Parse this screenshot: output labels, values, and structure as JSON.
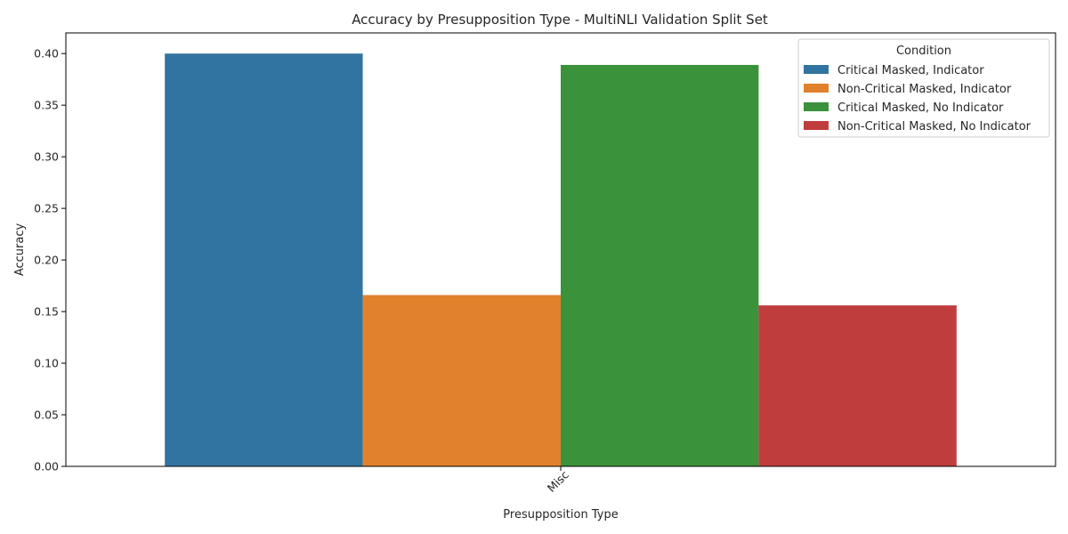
{
  "chart_data": {
    "type": "bar",
    "title": "Accuracy by Presupposition Type - MultiNLI Validation Split Set",
    "xlabel": "Presupposition Type",
    "ylabel": "Accuracy",
    "categories": [
      "Misc"
    ],
    "ylim": [
      0,
      0.42
    ],
    "yticks": [
      0.0,
      0.05,
      0.1,
      0.15,
      0.2,
      0.25,
      0.3,
      0.35,
      0.4
    ],
    "ytick_labels": [
      "0.00",
      "0.05",
      "0.10",
      "0.15",
      "0.20",
      "0.25",
      "0.30",
      "0.35",
      "0.40"
    ],
    "grid": false,
    "legend": {
      "title": "Condition",
      "placement": "top-right"
    },
    "series": [
      {
        "name": "Critical Masked, Indicator",
        "color": "#3274a1",
        "values": [
          0.4
        ]
      },
      {
        "name": "Non-Critical Masked, Indicator",
        "color": "#e1812c",
        "values": [
          0.166
        ]
      },
      {
        "name": "Critical Masked, No Indicator",
        "color": "#3a923a",
        "values": [
          0.389
        ]
      },
      {
        "name": "Non-Critical Masked, No Indicator",
        "color": "#c03d3e",
        "values": [
          0.156
        ]
      }
    ]
  }
}
